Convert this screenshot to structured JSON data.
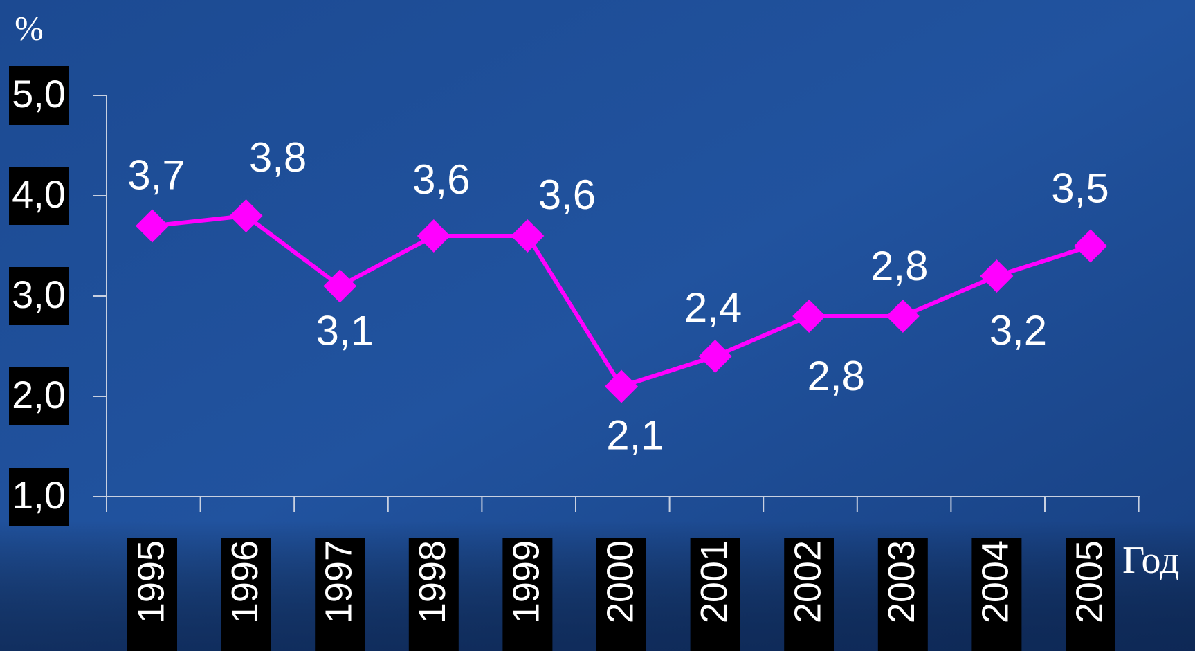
{
  "chart_data": {
    "type": "line",
    "y_label": "%",
    "x_label": "Год",
    "categories": [
      "1995",
      "1996",
      "1997",
      "1998",
      "1999",
      "2000",
      "2001",
      "2002",
      "2003",
      "2004",
      "2005"
    ],
    "series": [
      {
        "name": null,
        "color": "#ff00ff",
        "values": [
          3.7,
          3.8,
          3.1,
          3.6,
          3.6,
          2.1,
          2.4,
          2.8,
          2.8,
          3.2,
          3.5
        ],
        "value_labels": [
          "3,7",
          "3,8",
          "3,1",
          "3,6",
          "3,6",
          "2,1",
          "2,4",
          "2,8",
          "2,8",
          "3,2",
          "3,5"
        ]
      }
    ],
    "ylim": [
      1,
      5
    ],
    "yticks": [
      {
        "value": 1,
        "label": "1,0"
      },
      {
        "value": 2,
        "label": "2,0"
      },
      {
        "value": 3,
        "label": "3,0"
      },
      {
        "value": 4,
        "label": "4,0"
      },
      {
        "value": 5,
        "label": "5,0"
      }
    ],
    "grid": false
  }
}
